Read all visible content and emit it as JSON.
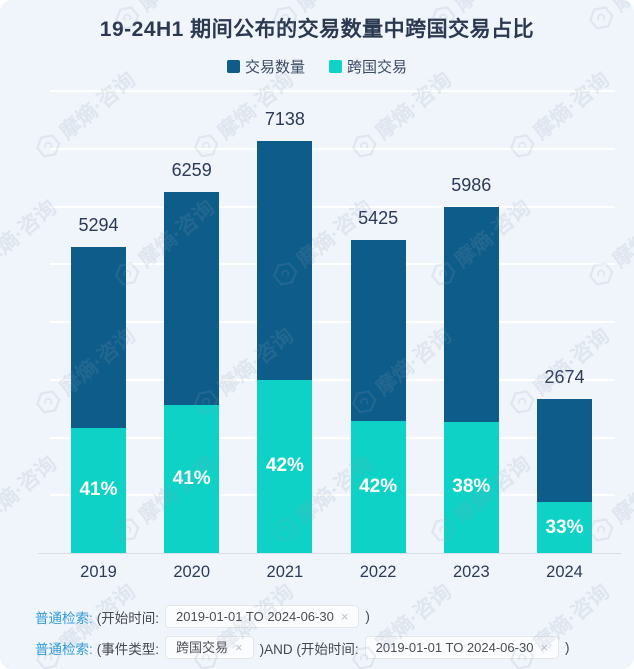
{
  "title": "19-24H1 期间公布的交易数量中跨国交易占比",
  "legend": [
    {
      "label": "交易数量",
      "color": "#0d5c89"
    },
    {
      "label": "跨国交易",
      "color": "#0ed2c6"
    }
  ],
  "chart_data": {
    "type": "bar",
    "stacked": true,
    "title": "19-24H1 期间公布的交易数量中跨国交易占比",
    "xlabel": "",
    "ylabel": "",
    "categories": [
      "2019",
      "2020",
      "2021",
      "2022",
      "2023",
      "2024"
    ],
    "series": [
      {
        "name": "交易数量",
        "color": "#0d5c89",
        "values": [
          5294,
          6259,
          7138,
          5425,
          5986,
          2674
        ],
        "value_labels": [
          "5294",
          "6259",
          "7138",
          "5425",
          "5986",
          "2674"
        ]
      },
      {
        "name": "跨国交易",
        "color": "#0ed2c6",
        "percent_of_total": [
          41,
          41,
          42,
          42,
          38,
          33
        ],
        "percent_labels": [
          "41%",
          "41%",
          "42%",
          "42%",
          "38%",
          "33%"
        ]
      }
    ],
    "ylim": [
      0,
      8000
    ],
    "grid_interval": 1000,
    "grid": true,
    "legend_position": "top",
    "y_axis_labels_shown": false
  },
  "colors": {
    "background": "#f0f4fb",
    "bar_primary": "#0d5c89",
    "bar_secondary": "#0ed2c6",
    "gridline": "#ffffff",
    "axis_line": "#d9dfe9",
    "text_dark": "#2b3a57",
    "filter_keyword_blue": "#2f9cd8"
  },
  "watermark": {
    "text": "摩熵·咨询",
    "icon": "hexagon-logo-icon"
  },
  "filters": [
    {
      "keyword": "普通检索:",
      "parts": [
        {
          "type": "text",
          "value": "(开始时间:"
        },
        {
          "type": "tag",
          "value": "2019-01-01 TO 2024-06-30",
          "close": "×"
        },
        {
          "type": "text",
          "value": ")"
        }
      ]
    },
    {
      "keyword": "普通检索:",
      "parts": [
        {
          "type": "text",
          "value": "(事件类型:"
        },
        {
          "type": "tag",
          "value": "跨国交易",
          "close": "×"
        },
        {
          "type": "text",
          "value": ")AND (开始时间:"
        },
        {
          "type": "tag",
          "value": "2019-01-01 TO 2024-06-30",
          "close": "×"
        },
        {
          "type": "text",
          "value": ")"
        }
      ]
    }
  ]
}
